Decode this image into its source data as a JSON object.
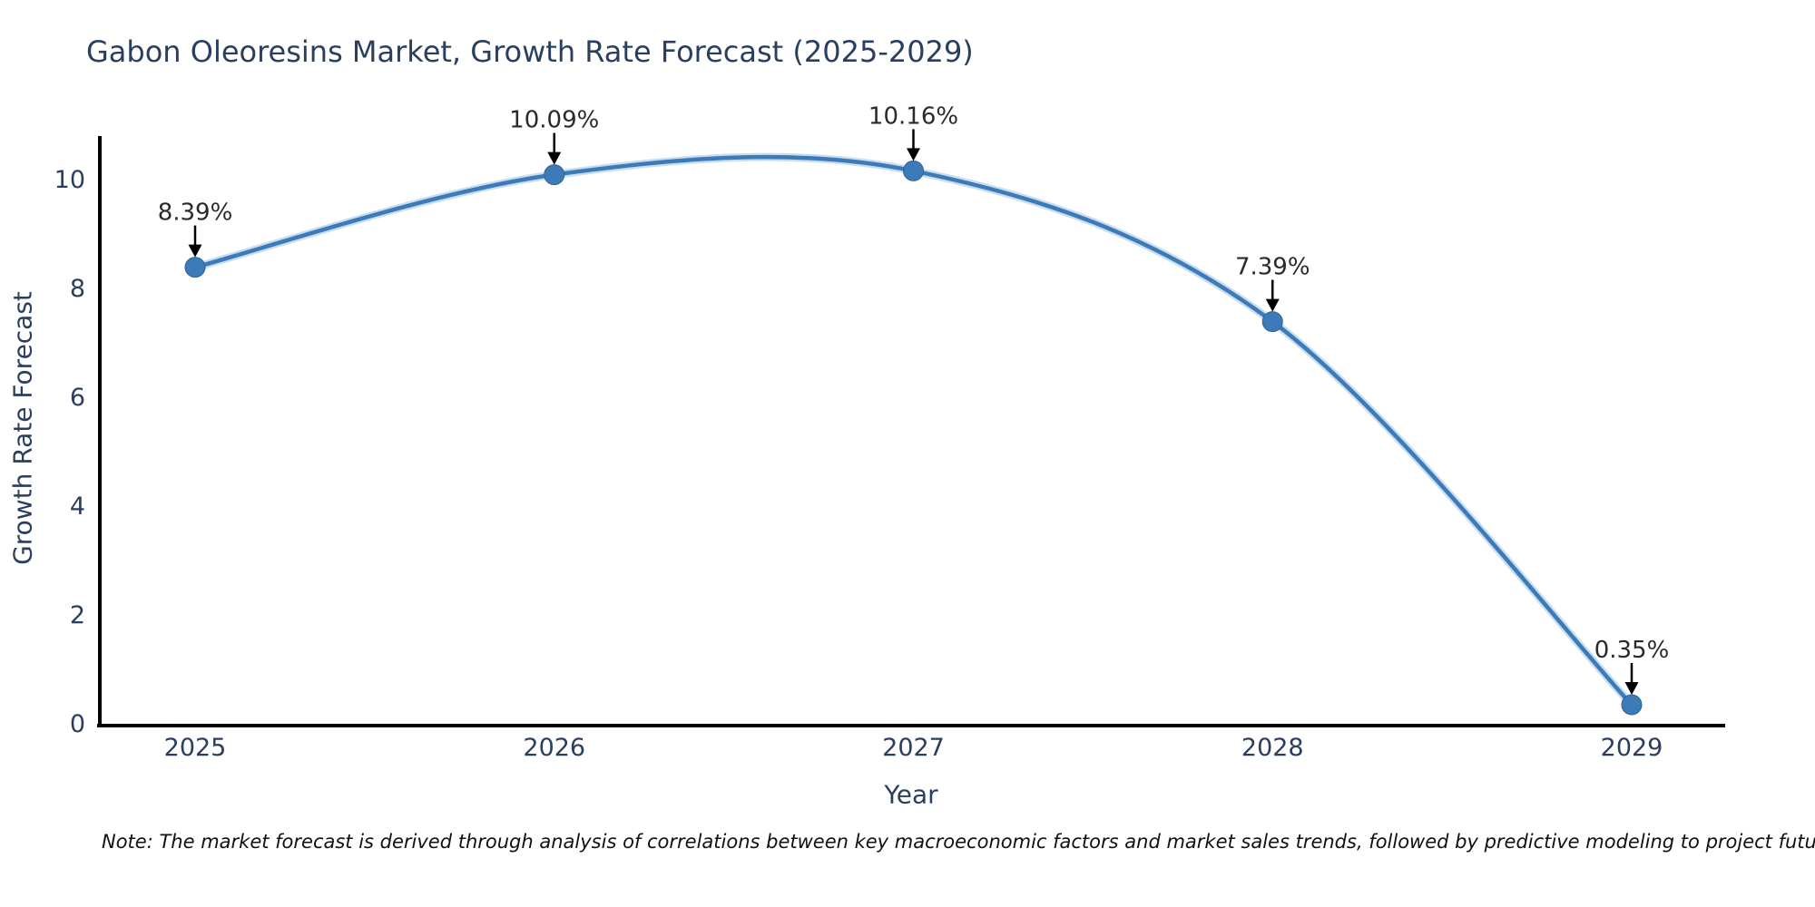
{
  "chart": {
    "title": "Gabon Oleoresins Market, Growth Rate Forecast (2025-2029)",
    "ylabel": "Growth Rate Forecast",
    "xlabel": "Year",
    "note": "Note: The market forecast is derived through analysis of correlations between key macroeconomic factors and market sales trends, followed by predictive modeling to project future sales."
  },
  "chart_data": {
    "type": "line",
    "title": "Gabon Oleoresins Market, Growth Rate Forecast (2025-2029)",
    "xlabel": "Year",
    "ylabel": "Growth Rate Forecast",
    "x": [
      2025,
      2026,
      2027,
      2028,
      2029
    ],
    "values": [
      8.39,
      10.09,
      10.16,
      7.39,
      0.35
    ],
    "point_labels": [
      "8.39%",
      "10.09%",
      "10.16%",
      "7.39%",
      "0.35%"
    ],
    "xticks": [
      "2025",
      "2026",
      "2027",
      "2028",
      "2029"
    ],
    "yticks": [
      0,
      2,
      4,
      6,
      8,
      10
    ],
    "ylim": [
      0,
      10.8
    ],
    "line_shape": "spline",
    "grid": false,
    "legend": "none",
    "colors": {
      "line": "#3d7ab8",
      "line_halo": "#c7ddf0",
      "marker": "#3d7ab8",
      "marker_edge": "#316397",
      "axis": "#000000",
      "tick_text": "#2a3f5f",
      "annotation_text": "#2a2a2a",
      "arrow": "#000000"
    }
  }
}
